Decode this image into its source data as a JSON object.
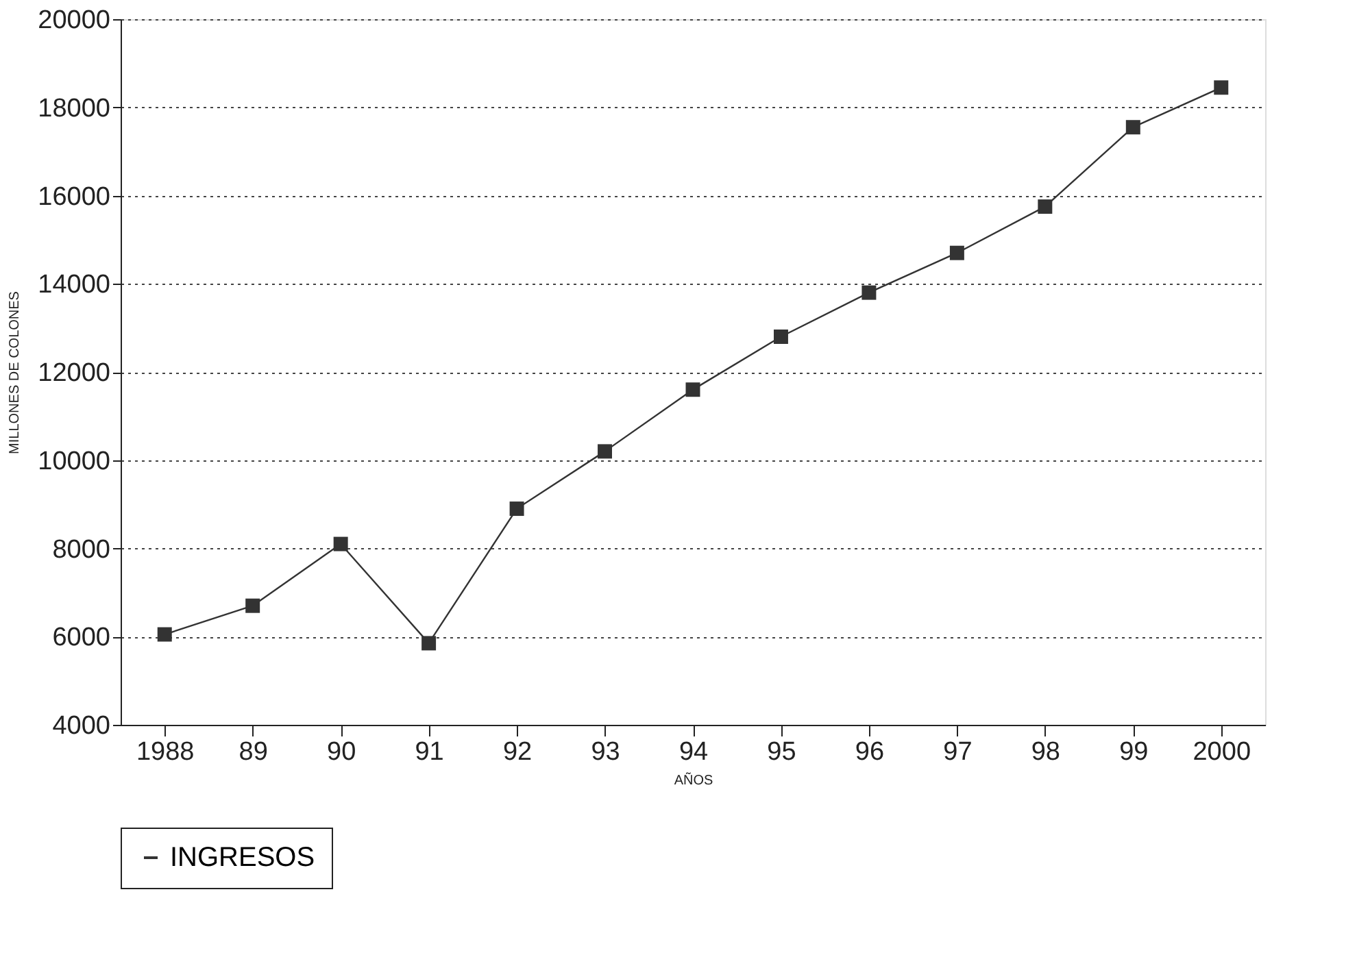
{
  "chart_data": {
    "type": "line",
    "xlabel": "AÑOS",
    "ylabel": "MILLONES DE COLONES",
    "categories": [
      "1988",
      "89",
      "90",
      "91",
      "92",
      "93",
      "94",
      "95",
      "96",
      "97",
      "98",
      "99",
      "2000"
    ],
    "series": [
      {
        "name": "INGRESOS",
        "color": "#333333",
        "values": [
          6050,
          6700,
          8100,
          5850,
          8900,
          10200,
          11600,
          12800,
          13800,
          14700,
          15750,
          17550,
          18450
        ]
      }
    ],
    "ylim": [
      4000,
      20000
    ],
    "yticks": [
      4000,
      6000,
      8000,
      10000,
      12000,
      14000,
      16000,
      18000,
      20000
    ],
    "grid": "y",
    "legend": "bottom",
    "marker": "square",
    "line_style": "solid"
  }
}
